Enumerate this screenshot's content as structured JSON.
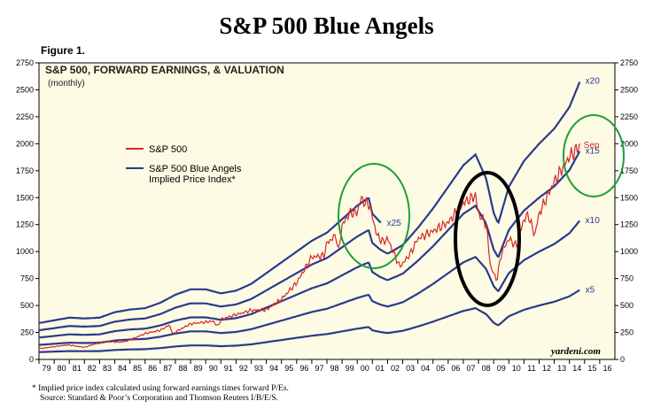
{
  "page": {
    "title": "S&P 500 Blue Angels",
    "figure_label": "Figure 1.",
    "footnote": "*  Implied price index calculated using forward earnings times forward P/Es.",
    "source": "Source: Standard & Poor’s Corporation and Thomson Reuters I/B/E/S.",
    "watermark": "yardeni.com"
  },
  "chart_data": {
    "type": "line",
    "title": "S&P 500, FORWARD EARNINGS, & VALUATION",
    "subtitle": "(monthly)",
    "ylim": [
      0,
      2750
    ],
    "y_ticks": [
      0,
      250,
      500,
      750,
      1000,
      1250,
      1500,
      1750,
      2000,
      2250,
      2500,
      2750
    ],
    "x_range": [
      1979,
      2017
    ],
    "x_ticks": [
      "79",
      "80",
      "81",
      "82",
      "83",
      "84",
      "85",
      "86",
      "87",
      "88",
      "89",
      "90",
      "91",
      "92",
      "93",
      "94",
      "95",
      "96",
      "97",
      "98",
      "99",
      "00",
      "01",
      "02",
      "03",
      "04",
      "05",
      "06",
      "07",
      "08",
      "09",
      "10",
      "11",
      "12",
      "13",
      "14",
      "15",
      "16"
    ],
    "legend": [
      {
        "label": "S&P 500",
        "color": "#d9262a"
      },
      {
        "label": "S&P 500 Blue Angels",
        "label2": "Implied Price Index*",
        "color": "#2a3a8c"
      }
    ],
    "colors": {
      "sp500": "#d9262a",
      "angels": "#2a3a8c",
      "background": "#fdfbe3",
      "circle_green": "#1e9e3a",
      "circle_black": "#000000"
    },
    "forward_earnings": {
      "x": [
        1979,
        1980,
        1981,
        1982,
        1983,
        1984,
        1985,
        1986,
        1987,
        1988,
        1989,
        1990,
        1991,
        1992,
        1993,
        1994,
        1995,
        1996,
        1997,
        1998,
        1999,
        2000,
        2000.75,
        2001,
        2001.5,
        2002,
        2003,
        2004,
        2005,
        2006,
        2007,
        2007.8,
        2008.5,
        2009.0,
        2009.3,
        2010,
        2011,
        2012,
        2013,
        2014,
        2014.7
      ],
      "values": [
        13.5,
        14.5,
        15.5,
        15.2,
        15.5,
        17.5,
        18.5,
        19,
        21,
        24,
        26,
        26,
        24.5,
        25.5,
        28,
        32,
        36,
        40,
        44,
        47,
        52,
        57,
        60,
        54,
        51,
        49,
        53,
        61,
        70,
        80,
        90,
        95,
        84,
        68,
        63,
        80,
        92,
        100,
        107,
        117,
        129
      ]
    },
    "series": [
      {
        "name": "x5",
        "multiplier": 5
      },
      {
        "name": "x10",
        "multiplier": 10
      },
      {
        "name": "x15",
        "multiplier": 15
      },
      {
        "name": "x20",
        "multiplier": 20
      },
      {
        "name": "x25",
        "multiplier": 25,
        "end": 2001.6
      }
    ],
    "sp500": {
      "name": "S&P 500",
      "end_label": "Sep",
      "x": [
        1979,
        1980,
        1980.9,
        1982,
        1982.6,
        1983.5,
        1984.5,
        1985,
        1986,
        1987,
        1987.6,
        1987.85,
        1988,
        1989,
        1990.5,
        1990.8,
        1991,
        1992,
        1993,
        1994,
        1995,
        1996,
        1997,
        1997.8,
        1998,
        1998.6,
        1998.75,
        1999,
        1999.5,
        2000,
        2000.25,
        2000.5,
        2000.8,
        2001,
        2001.3,
        2001.7,
        2002,
        2002.5,
        2002.8,
        2003,
        2003.5,
        2004,
        2005,
        2006,
        2007,
        2007.8,
        2008,
        2008.5,
        2008.8,
        2009.0,
        2009.2,
        2009.5,
        2010,
        2010.5,
        2011,
        2011.3,
        2011.7,
        2012,
        2013,
        2014,
        2014.7
      ],
      "values": [
        100,
        118,
        135,
        112,
        140,
        165,
        160,
        180,
        240,
        270,
        320,
        230,
        255,
        330,
        355,
        305,
        370,
        415,
        455,
        460,
        560,
        710,
        950,
        960,
        1080,
        1150,
        990,
        1240,
        1360,
        1360,
        1500,
        1450,
        1440,
        1320,
        1150,
        1090,
        1120,
        960,
        860,
        890,
        980,
        1120,
        1190,
        1270,
        1450,
        1520,
        1350,
        1260,
        850,
        800,
        730,
        980,
        1120,
        1050,
        1300,
        1340,
        1150,
        1350,
        1650,
        1880,
        1980
      ]
    },
    "annotations": [
      {
        "shape": "ellipse",
        "color": "green",
        "around": "2000 peak"
      },
      {
        "shape": "ellipse",
        "color": "black",
        "around": "2007-2009"
      },
      {
        "shape": "ellipse",
        "color": "green",
        "around": "2014 latest"
      }
    ]
  }
}
